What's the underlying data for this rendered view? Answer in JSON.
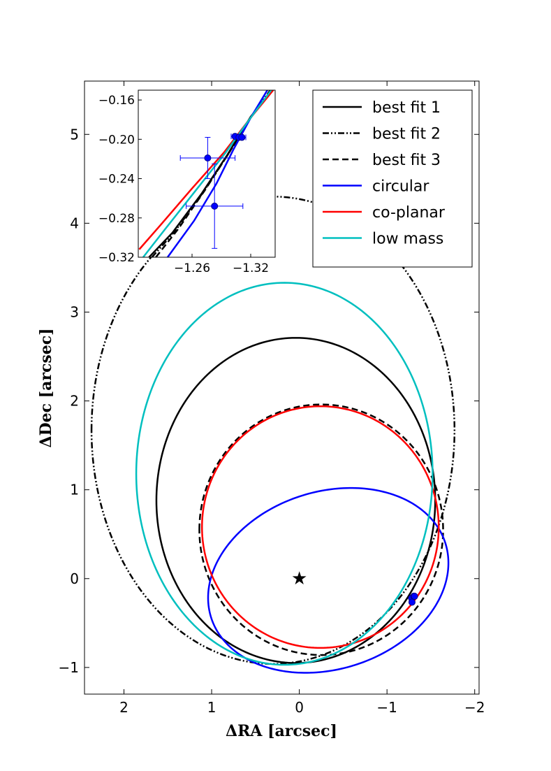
{
  "chart_data": {
    "type": "line",
    "xlabel": "ΔRA [arcsec]",
    "ylabel": "ΔDec [arcsec]",
    "xlim": [
      2.45,
      -2.05
    ],
    "ylim": [
      -1.3,
      5.6
    ],
    "xticks": [
      2,
      1,
      0,
      -1,
      -2
    ],
    "xtick_labels": [
      "2",
      "1",
      "0",
      "−1",
      "−2"
    ],
    "yticks": [
      -1,
      0,
      1,
      2,
      3,
      4,
      5
    ],
    "ytick_labels": [
      "−1",
      "0",
      "1",
      "2",
      "3",
      "4",
      "5"
    ],
    "grid": false,
    "legend_position": "top-right",
    "star": {
      "x": 0,
      "y": 0,
      "marker": "★"
    },
    "series": [
      {
        "name": "best fit 1",
        "color": "#000000",
        "style": "solid",
        "cx": 0.04,
        "cy": 0.88,
        "a": 1.59,
        "b": 1.83,
        "theta_deg": 0
      },
      {
        "name": "best fit 2",
        "color": "#000000",
        "style": "dashdotdot",
        "cx": 0.3,
        "cy": 1.67,
        "a": 2.07,
        "b": 2.63,
        "theta_deg": 0
      },
      {
        "name": "best fit 3",
        "color": "#000000",
        "style": "dashed",
        "cx": -0.25,
        "cy": 0.55,
        "a": 1.39,
        "b": 1.41,
        "theta_deg": 0
      },
      {
        "name": "circular",
        "color": "#0000ff",
        "style": "solid",
        "cx": -0.33,
        "cy": -0.02,
        "a": 1.4,
        "b": 1.0,
        "theta_deg": -17
      },
      {
        "name": "co-planar",
        "color": "#ff0000",
        "style": "solid",
        "cx": -0.24,
        "cy": 0.58,
        "a": 1.35,
        "b": 1.36,
        "theta_deg": 0
      },
      {
        "name": "low mass",
        "color": "#00bfbf",
        "style": "solid",
        "cx": 0.17,
        "cy": 1.18,
        "a": 1.69,
        "b": 2.15,
        "theta_deg": 0
      }
    ],
    "observations": [
      {
        "x": -1.28,
        "y": -0.22
      },
      {
        "x": -1.285,
        "y": -0.265
      },
      {
        "x": -1.306,
        "y": -0.198
      },
      {
        "x": -1.31,
        "y": -0.198
      },
      {
        "x": -1.314,
        "y": -0.199
      }
    ],
    "inset": {
      "xlim": [
        -1.205,
        -1.345
      ],
      "ylim": [
        -0.32,
        -0.15
      ],
      "xticks": [
        -1.26,
        -1.32
      ],
      "xtick_labels": [
        "−1.26",
        "−1.32"
      ],
      "yticks": [
        -0.16,
        -0.2,
        -0.24,
        -0.28,
        -0.32
      ],
      "ytick_labels": [
        "−0.16",
        "−0.20",
        "−0.24",
        "−0.28",
        "−0.32"
      ],
      "points": [
        {
          "x": -1.276,
          "y": -0.219,
          "xerr": 0.028,
          "yerr": 0.021
        },
        {
          "x": -1.283,
          "y": -0.268,
          "xerr": 0.029,
          "yerr": 0.043
        },
        {
          "x": -1.304,
          "y": -0.197,
          "xerr": 0.004,
          "yerr": 0.0015
        },
        {
          "x": -1.308,
          "y": -0.198,
          "xerr": 0.004,
          "yerr": 0.0015
        },
        {
          "x": -1.311,
          "y": -0.198,
          "xerr": 0.004,
          "yerr": 0.0015
        }
      ],
      "lines": [
        {
          "name": "best fit 1",
          "pts": [
            [
              -1.216,
              -0.32
            ],
            [
              -1.24,
              -0.295
            ],
            [
              -1.27,
              -0.255
            ],
            [
              -1.296,
              -0.216
            ],
            [
              -1.32,
              -0.177
            ],
            [
              -1.342,
              -0.15
            ]
          ]
        },
        {
          "name": "best fit 2",
          "pts": [
            [
              -1.219,
              -0.32
            ],
            [
              -1.243,
              -0.293
            ],
            [
              -1.272,
              -0.253
            ],
            [
              -1.297,
              -0.215
            ],
            [
              -1.32,
              -0.178
            ],
            [
              -1.34,
              -0.15
            ]
          ]
        },
        {
          "name": "best fit 3",
          "pts": [
            [
              -1.223,
              -0.32
            ],
            [
              -1.246,
              -0.291
            ],
            [
              -1.273,
              -0.252
            ],
            [
              -1.297,
              -0.215
            ],
            [
              -1.32,
              -0.178
            ],
            [
              -1.341,
              -0.15
            ]
          ]
        },
        {
          "name": "circular",
          "pts": [
            [
              -1.235,
              -0.32
            ],
            [
              -1.262,
              -0.283
            ],
            [
              -1.285,
              -0.245
            ],
            [
              -1.302,
              -0.211
            ],
            [
              -1.32,
              -0.178
            ],
            [
              -1.337,
              -0.15
            ]
          ]
        },
        {
          "name": "co-planar",
          "pts": [
            [
              -1.206,
              -0.312
            ],
            [
              -1.228,
              -0.287
            ],
            [
              -1.26,
              -0.25
            ],
            [
              -1.293,
              -0.213
            ],
            [
              -1.32,
              -0.178
            ],
            [
              -1.343,
              -0.15
            ]
          ]
        },
        {
          "name": "low mass",
          "pts": [
            [
              -1.21,
              -0.32
            ],
            [
              -1.232,
              -0.292
            ],
            [
              -1.263,
              -0.253
            ],
            [
              -1.294,
              -0.214
            ],
            [
              -1.32,
              -0.178
            ],
            [
              -1.341,
              -0.15
            ]
          ]
        }
      ]
    }
  }
}
